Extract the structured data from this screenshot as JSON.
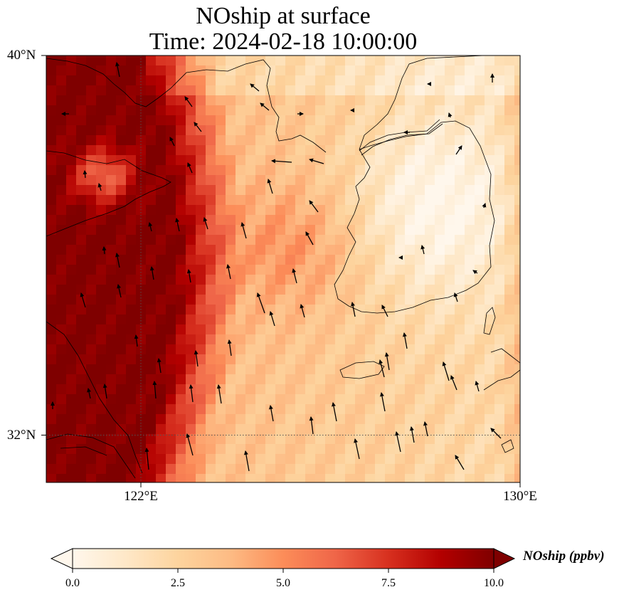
{
  "title": {
    "line1": "NOship at surface",
    "line2": "Time: 2024-02-18 10:00:00"
  },
  "axes": {
    "lat_labels": [
      "40°N",
      "32°N"
    ],
    "lon_labels": [
      "122°E",
      "130°E"
    ],
    "lat_range": [
      31,
      40
    ],
    "lon_range": [
      120,
      130
    ]
  },
  "colorbar": {
    "label": "NOship (ppbv)",
    "ticks": [
      "0.0",
      "2.5",
      "5.0",
      "7.5",
      "10.0"
    ],
    "range": [
      0,
      10
    ],
    "extend": "both",
    "colormap": "OrRd",
    "colors": [
      "#fff7ec",
      "#fee8c8",
      "#fdd49e",
      "#fdbb84",
      "#fc8d59",
      "#ef6548",
      "#d7301f",
      "#b30000",
      "#7f0000"
    ]
  },
  "chart_data": {
    "type": "heatmap",
    "title": "NOship at surface",
    "subtitle": "Time: 2024-02-18 10:00:00",
    "xlabel": "",
    "ylabel": "",
    "xlim": [
      120,
      130
    ],
    "ylim": [
      31,
      40
    ],
    "units": "ppbv",
    "value_range": [
      0,
      10
    ],
    "grid": "dotted at 122°E and 32°N",
    "description_values": {
      "western_coastal_band": 10,
      "yellow_sea_central": 4,
      "korean_peninsula": 1,
      "east_sea_edge": 4
    }
  }
}
